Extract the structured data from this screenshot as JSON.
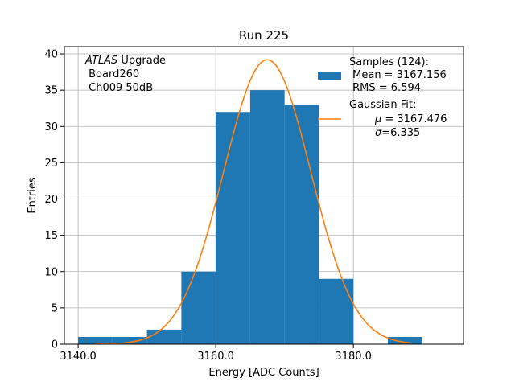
{
  "chart_data": {
    "type": "bar",
    "title": "Run 225",
    "xlabel": "Energy [ADC Counts]",
    "ylabel": "Entries",
    "xlim": [
      3138.0,
      3196.0
    ],
    "ylim": [
      0,
      41
    ],
    "xticks": [
      3140,
      3160,
      3180
    ],
    "xtick_labels": [
      "3140.0",
      "3160.0",
      "3180.0"
    ],
    "yticks": [
      0,
      5,
      10,
      15,
      20,
      25,
      30,
      35,
      40
    ],
    "ytick_labels": [
      "0",
      "5",
      "10",
      "15",
      "20",
      "25",
      "30",
      "35",
      "40"
    ],
    "grid": true,
    "bins": [
      {
        "x0": 3140,
        "x1": 3145,
        "count": 1
      },
      {
        "x0": 3145,
        "x1": 3150,
        "count": 1
      },
      {
        "x0": 3150,
        "x1": 3155,
        "count": 2
      },
      {
        "x0": 3155,
        "x1": 3160,
        "count": 10
      },
      {
        "x0": 3160,
        "x1": 3165,
        "count": 32
      },
      {
        "x0": 3165,
        "x1": 3170,
        "count": 35
      },
      {
        "x0": 3170,
        "x1": 3175,
        "count": 33
      },
      {
        "x0": 3175,
        "x1": 3180,
        "count": 9
      },
      {
        "x0": 3180,
        "x1": 3185,
        "count": 0
      },
      {
        "x0": 3185,
        "x1": 3190,
        "count": 1
      }
    ],
    "fit": {
      "mu": 3167.476,
      "sigma": 6.335,
      "amplitude": 39.2,
      "x_range": [
        3142.5,
        3188.5
      ]
    },
    "colors": {
      "bars": "#1f77b4",
      "fit_line": "#ff7f0e",
      "grid": "#b0b0b0"
    },
    "legend": {
      "placement": "top-right",
      "samples_label": "Samples (124):",
      "mean_label": " Mean = 3167.156",
      "rms_label": " RMS = 6.594",
      "fit_label": "Gaussian Fit:",
      "mu_symbol": "μ",
      "mu_value": " = 3167.476",
      "sigma_symbol": "σ",
      "sigma_value": "=6.335"
    },
    "annotation": {
      "experiment": "ATLAS",
      "experiment_suffix": " Upgrade",
      "board": " Board260",
      "channel": " Ch009 50dB"
    }
  }
}
